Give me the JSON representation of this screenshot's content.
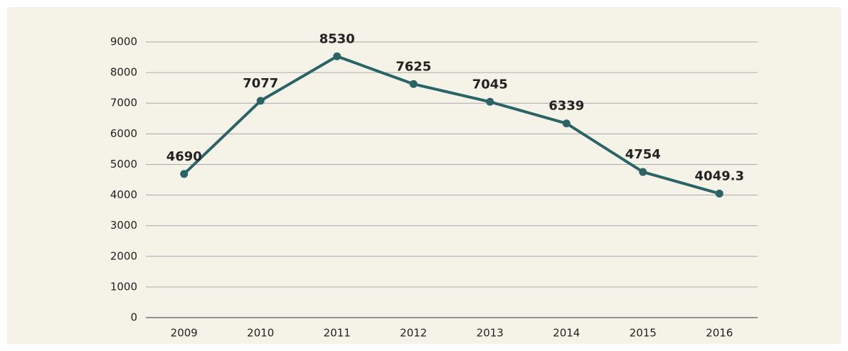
{
  "chart_data": {
    "type": "line",
    "categories": [
      "2009",
      "2010",
      "2011",
      "2012",
      "2013",
      "2014",
      "2015",
      "2016"
    ],
    "series": [
      {
        "name": "Value",
        "color": "#2b6467",
        "values": [
          4690,
          7077,
          8530,
          7625,
          7045,
          6339,
          4754,
          4049.3
        ]
      }
    ],
    "ylim": [
      0,
      9000
    ],
    "yticks": [
      0,
      1000,
      2000,
      3000,
      4000,
      5000,
      6000,
      7000,
      8000,
      9000
    ],
    "grid": true
  }
}
